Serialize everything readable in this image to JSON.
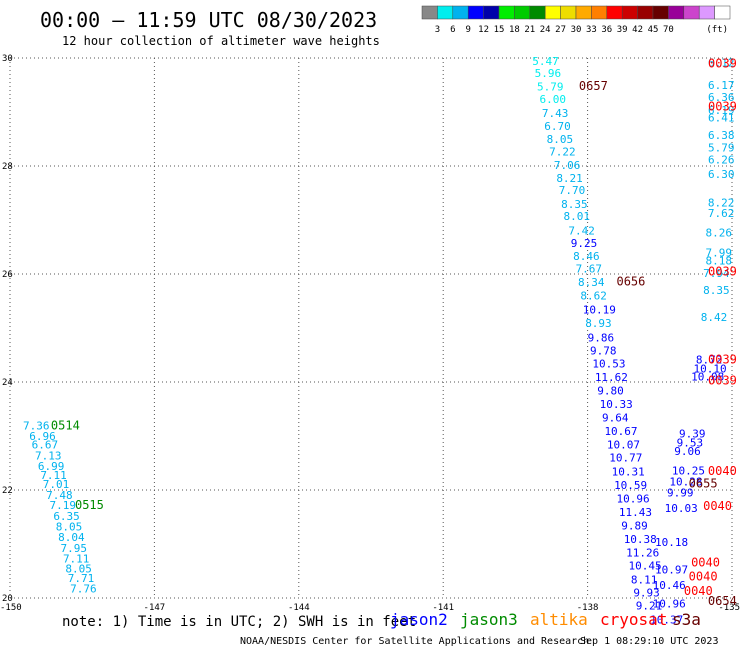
{
  "header": {
    "title": "00:00 – 11:59 UTC 08/30/2023",
    "subtitle": "12 hour collection of altimeter wave heights"
  },
  "colorbar": {
    "unit": "(ft)",
    "colors": [
      "#888888",
      "#00eeee",
      "#00b2ee",
      "#0000ff",
      "#0000aa",
      "#00ee00",
      "#00cc00",
      "#008b00",
      "#ffff00",
      "#eedd00",
      "#ffaa00",
      "#ff7f00",
      "#ff0000",
      "#cc0000",
      "#990000",
      "#660000",
      "#990099",
      "#cc44cc",
      "#dd99ff",
      "#ffffff"
    ],
    "labels": [
      "3",
      "6",
      "9",
      "12",
      "15",
      "18",
      "21",
      "24",
      "27",
      "30",
      "33",
      "36",
      "39",
      "42",
      "45",
      "70"
    ]
  },
  "footer": {
    "note": "note: 1) Time is in UTC; 2) SWH is in feet",
    "credit": "NOAA/NESDIS Center for Satellite Applications and Research",
    "timestamp": "Sep  1 08:29:10 UTC 2023"
  },
  "legend": [
    {
      "name": "jason2",
      "color": "#0000ff"
    },
    {
      "name": "jason3",
      "color": "#008b00"
    },
    {
      "name": "altika",
      "color": "#ff8c00"
    },
    {
      "name": "cryosat",
      "color": "#ff0000"
    },
    {
      "name": "s3a",
      "color": "#660000"
    }
  ],
  "chart_data": {
    "type": "scatter",
    "xlim": [
      -150,
      -135
    ],
    "ylim": [
      20,
      30
    ],
    "x_ticks": [
      "-150",
      "-147",
      "-144",
      "-141",
      "-138",
      "-135"
    ],
    "y_ticks": [
      "20",
      "22",
      "24",
      "26",
      "28",
      "30"
    ],
    "grid": true,
    "points": [
      {
        "lon": -149.73,
        "lat": 23.19,
        "label": "7.36",
        "color": "#00b2ee"
      },
      {
        "lon": -149.6,
        "lat": 23.0,
        "label": "6.96",
        "color": "#00b2ee"
      },
      {
        "lon": -149.55,
        "lat": 22.84,
        "label": "6.67",
        "color": "#00b2ee"
      },
      {
        "lon": -149.48,
        "lat": 22.64,
        "label": "7.13",
        "color": "#00b2ee"
      },
      {
        "lon": -149.42,
        "lat": 22.44,
        "label": "6.99",
        "color": "#00b2ee"
      },
      {
        "lon": -149.37,
        "lat": 22.28,
        "label": "7.11",
        "color": "#00b2ee"
      },
      {
        "lon": -149.32,
        "lat": 22.11,
        "label": "7.01",
        "color": "#00b2ee"
      },
      {
        "lon": -149.25,
        "lat": 21.91,
        "label": "7.48",
        "color": "#00b2ee"
      },
      {
        "lon": -149.18,
        "lat": 21.72,
        "label": "7.19",
        "color": "#00b2ee"
      },
      {
        "lon": -149.1,
        "lat": 21.52,
        "label": "6.35",
        "color": "#00b2ee"
      },
      {
        "lon": -149.05,
        "lat": 21.32,
        "label": "8.05",
        "color": "#00b2ee"
      },
      {
        "lon": -149.0,
        "lat": 21.13,
        "label": "8.04",
        "color": "#00b2ee"
      },
      {
        "lon": -148.95,
        "lat": 20.93,
        "label": "7.95",
        "color": "#00b2ee"
      },
      {
        "lon": -148.9,
        "lat": 20.73,
        "label": "7.11",
        "color": "#00b2ee"
      },
      {
        "lon": -148.85,
        "lat": 20.55,
        "label": "8.05",
        "color": "#00b2ee"
      },
      {
        "lon": -148.8,
        "lat": 20.37,
        "label": "7.71",
        "color": "#00b2ee"
      },
      {
        "lon": -148.75,
        "lat": 20.18,
        "label": "7.76",
        "color": "#00b2ee"
      },
      {
        "lon": -139.15,
        "lat": 29.94,
        "label": "5.47",
        "color": "#00eeee"
      },
      {
        "lon": -139.1,
        "lat": 29.72,
        "label": "5.96",
        "color": "#00eeee"
      },
      {
        "lon": -139.05,
        "lat": 29.47,
        "label": "5.79",
        "color": "#00eeee"
      },
      {
        "lon": -139.0,
        "lat": 29.24,
        "label": "6.00",
        "color": "#00eeee"
      },
      {
        "lon": -138.95,
        "lat": 28.98,
        "label": "7.43",
        "color": "#00b2ee"
      },
      {
        "lon": -138.9,
        "lat": 28.74,
        "label": "6.70",
        "color": "#00b2ee"
      },
      {
        "lon": -138.85,
        "lat": 28.5,
        "label": "8.05",
        "color": "#00b2ee"
      },
      {
        "lon": -138.8,
        "lat": 28.27,
        "label": "7.22",
        "color": "#00b2ee"
      },
      {
        "lon": -138.7,
        "lat": 28.02,
        "label": "7.06",
        "color": "#00b2ee"
      },
      {
        "lon": -138.65,
        "lat": 27.78,
        "label": "8.21",
        "color": "#00b2ee"
      },
      {
        "lon": -138.6,
        "lat": 27.56,
        "label": "7.70",
        "color": "#00b2ee"
      },
      {
        "lon": -138.55,
        "lat": 27.3,
        "label": "8.35",
        "color": "#00b2ee"
      },
      {
        "lon": -138.5,
        "lat": 27.07,
        "label": "8.01",
        "color": "#00b2ee"
      },
      {
        "lon": -138.4,
        "lat": 26.81,
        "label": "7.42",
        "color": "#00b2ee"
      },
      {
        "lon": -138.35,
        "lat": 26.57,
        "label": "9.25",
        "color": "#0000ff"
      },
      {
        "lon": -138.3,
        "lat": 26.33,
        "label": "8.46",
        "color": "#00b2ee"
      },
      {
        "lon": -138.25,
        "lat": 26.1,
        "label": "7.67",
        "color": "#00b2ee"
      },
      {
        "lon": -138.2,
        "lat": 25.85,
        "label": "8.34",
        "color": "#00b2ee"
      },
      {
        "lon": -138.15,
        "lat": 25.6,
        "label": "8.62",
        "color": "#00b2ee"
      },
      {
        "lon": -138.1,
        "lat": 25.34,
        "label": "10.19",
        "color": "#0000ff"
      },
      {
        "lon": -138.05,
        "lat": 25.09,
        "label": "8.93",
        "color": "#00b2ee"
      },
      {
        "lon": -138.0,
        "lat": 24.82,
        "label": "9.86",
        "color": "#0000ff"
      },
      {
        "lon": -137.95,
        "lat": 24.58,
        "label": "9.78",
        "color": "#0000ff"
      },
      {
        "lon": -137.9,
        "lat": 24.34,
        "label": "10.53",
        "color": "#0000ff"
      },
      {
        "lon": -137.85,
        "lat": 24.09,
        "label": "11.62",
        "color": "#0000ff"
      },
      {
        "lon": -137.8,
        "lat": 23.84,
        "label": "9.80",
        "color": "#0000ff"
      },
      {
        "lon": -137.75,
        "lat": 23.59,
        "label": "10.33",
        "color": "#0000ff"
      },
      {
        "lon": -137.7,
        "lat": 23.34,
        "label": "9.64",
        "color": "#0000ff"
      },
      {
        "lon": -137.65,
        "lat": 23.09,
        "label": "10.67",
        "color": "#0000ff"
      },
      {
        "lon": -137.6,
        "lat": 22.84,
        "label": "10.07",
        "color": "#0000ff"
      },
      {
        "lon": -137.55,
        "lat": 22.6,
        "label": "10.77",
        "color": "#0000ff"
      },
      {
        "lon": -137.5,
        "lat": 22.34,
        "label": "10.31",
        "color": "#0000ff"
      },
      {
        "lon": -137.45,
        "lat": 22.09,
        "label": "10.59",
        "color": "#0000ff"
      },
      {
        "lon": -137.4,
        "lat": 21.84,
        "label": "10.96",
        "color": "#0000ff"
      },
      {
        "lon": -137.35,
        "lat": 21.59,
        "label": "11.43",
        "color": "#0000ff"
      },
      {
        "lon": -137.3,
        "lat": 21.34,
        "label": "9.89",
        "color": "#0000ff"
      },
      {
        "lon": -137.25,
        "lat": 21.09,
        "label": "10.38",
        "color": "#0000ff"
      },
      {
        "lon": -137.2,
        "lat": 20.84,
        "label": "11.26",
        "color": "#0000ff"
      },
      {
        "lon": -137.15,
        "lat": 20.6,
        "label": "10.45",
        "color": "#0000ff"
      },
      {
        "lon": -137.1,
        "lat": 20.34,
        "label": "8.11",
        "color": "#0000ff"
      },
      {
        "lon": -137.05,
        "lat": 20.1,
        "label": "9.93",
        "color": "#0000ff"
      },
      {
        "lon": -137.0,
        "lat": 19.86,
        "label": "9.21",
        "color": "#0000ff"
      },
      {
        "lon": -135.25,
        "lat": 29.92,
        "label": "6.12",
        "color": "#00b2ee"
      },
      {
        "lon": -135.3,
        "lat": 29.5,
        "label": "6.17",
        "color": "#00b2ee"
      },
      {
        "lon": -135.3,
        "lat": 29.28,
        "label": "6.36",
        "color": "#00b2ee"
      },
      {
        "lon": -135.3,
        "lat": 29.04,
        "label": "6.19",
        "color": "#00b2ee"
      },
      {
        "lon": -135.3,
        "lat": 28.9,
        "label": "6.41",
        "color": "#00b2ee"
      },
      {
        "lon": -135.35,
        "lat": 28.57,
        "label": "6.38",
        "color": "#00b2ee"
      },
      {
        "lon": -135.4,
        "lat": 28.34,
        "label": "5.79",
        "color": "#00b2ee"
      },
      {
        "lon": -135.4,
        "lat": 28.12,
        "label": "6.26",
        "color": "#00b2ee"
      },
      {
        "lon": -135.45,
        "lat": 27.85,
        "label": "6.30",
        "color": "#00b2ee"
      },
      {
        "lon": -135.5,
        "lat": 27.32,
        "label": "8.22",
        "color": "#00b2ee"
      },
      {
        "lon": -135.5,
        "lat": 27.13,
        "label": "7.62",
        "color": "#00b2ee"
      },
      {
        "lon": -135.55,
        "lat": 26.77,
        "label": "8.26",
        "color": "#00b2ee"
      },
      {
        "lon": -135.55,
        "lat": 26.4,
        "label": "7.99",
        "color": "#00b2ee"
      },
      {
        "lon": -135.55,
        "lat": 26.25,
        "label": "8.18",
        "color": "#00b2ee"
      },
      {
        "lon": -135.6,
        "lat": 26.02,
        "label": "7.94",
        "color": "#00b2ee"
      },
      {
        "lon": -135.6,
        "lat": 25.7,
        "label": "8.35",
        "color": "#00b2ee"
      },
      {
        "lon": -135.65,
        "lat": 25.2,
        "label": "8.42",
        "color": "#00b2ee"
      },
      {
        "lon": -135.75,
        "lat": 24.42,
        "label": "8.72",
        "color": "#0000ff"
      },
      {
        "lon": -135.8,
        "lat": 24.25,
        "label": "10.10",
        "color": "#0000ff"
      },
      {
        "lon": -135.85,
        "lat": 24.1,
        "label": "10.08",
        "color": "#0000ff"
      },
      {
        "lon": -136.1,
        "lat": 23.05,
        "label": "9.39",
        "color": "#0000ff"
      },
      {
        "lon": -136.15,
        "lat": 22.88,
        "label": "9.53",
        "color": "#0000ff"
      },
      {
        "lon": -136.2,
        "lat": 22.72,
        "label": "9.06",
        "color": "#0000ff"
      },
      {
        "lon": -136.25,
        "lat": 22.36,
        "label": "10.25",
        "color": "#0000ff"
      },
      {
        "lon": -136.3,
        "lat": 22.16,
        "label": "10.28",
        "color": "#0000ff"
      },
      {
        "lon": -136.35,
        "lat": 21.95,
        "label": "9.99",
        "color": "#0000ff"
      },
      {
        "lon": -136.4,
        "lat": 21.67,
        "label": "10.03",
        "color": "#0000ff"
      },
      {
        "lon": -136.6,
        "lat": 21.04,
        "label": "10.18",
        "color": "#0000ff"
      },
      {
        "lon": -136.6,
        "lat": 20.53,
        "label": "10.97",
        "color": "#0000ff"
      },
      {
        "lon": -136.65,
        "lat": 20.24,
        "label": "10.46",
        "color": "#0000ff"
      },
      {
        "lon": -136.65,
        "lat": 19.9,
        "label": "10.96",
        "color": "#0000ff"
      },
      {
        "lon": -136.7,
        "lat": 19.6,
        "label": "10.37",
        "color": "#0000ff"
      }
    ],
    "pass_times": [
      {
        "lon": -149.15,
        "lat": 23.19,
        "label": "0514",
        "color": "#008b00"
      },
      {
        "lon": -148.65,
        "lat": 21.72,
        "label": "0515",
        "color": "#008b00"
      },
      {
        "lon": -138.18,
        "lat": 29.48,
        "label": "0657",
        "color": "#660000"
      },
      {
        "lon": -137.4,
        "lat": 25.86,
        "label": "0656",
        "color": "#660000"
      },
      {
        "lon": -135.9,
        "lat": 22.12,
        "label": "0655",
        "color": "#660000"
      },
      {
        "lon": -135.5,
        "lat": 19.94,
        "label": "0654",
        "color": "#660000"
      },
      {
        "lon": -134.9,
        "lat": 29.9,
        "label": "0039",
        "color": "#ff0000"
      },
      {
        "lon": -134.9,
        "lat": 29.1,
        "label": "0039",
        "color": "#ff0000"
      },
      {
        "lon": -135.1,
        "lat": 26.05,
        "label": "0039",
        "color": "#ff0000"
      },
      {
        "lon": -135.25,
        "lat": 24.42,
        "label": "0039",
        "color": "#ff0000"
      },
      {
        "lon": -135.25,
        "lat": 24.03,
        "label": "0039",
        "color": "#ff0000"
      },
      {
        "lon": -135.5,
        "lat": 22.35,
        "label": "0040",
        "color": "#ff0000"
      },
      {
        "lon": -135.6,
        "lat": 21.7,
        "label": "0040",
        "color": "#ff0000"
      },
      {
        "lon": -135.85,
        "lat": 20.66,
        "label": "0040",
        "color": "#ff0000"
      },
      {
        "lon": -135.9,
        "lat": 20.4,
        "label": "0040",
        "color": "#ff0000"
      },
      {
        "lon": -136.0,
        "lat": 20.13,
        "label": "0040",
        "color": "#ff0000"
      }
    ]
  }
}
